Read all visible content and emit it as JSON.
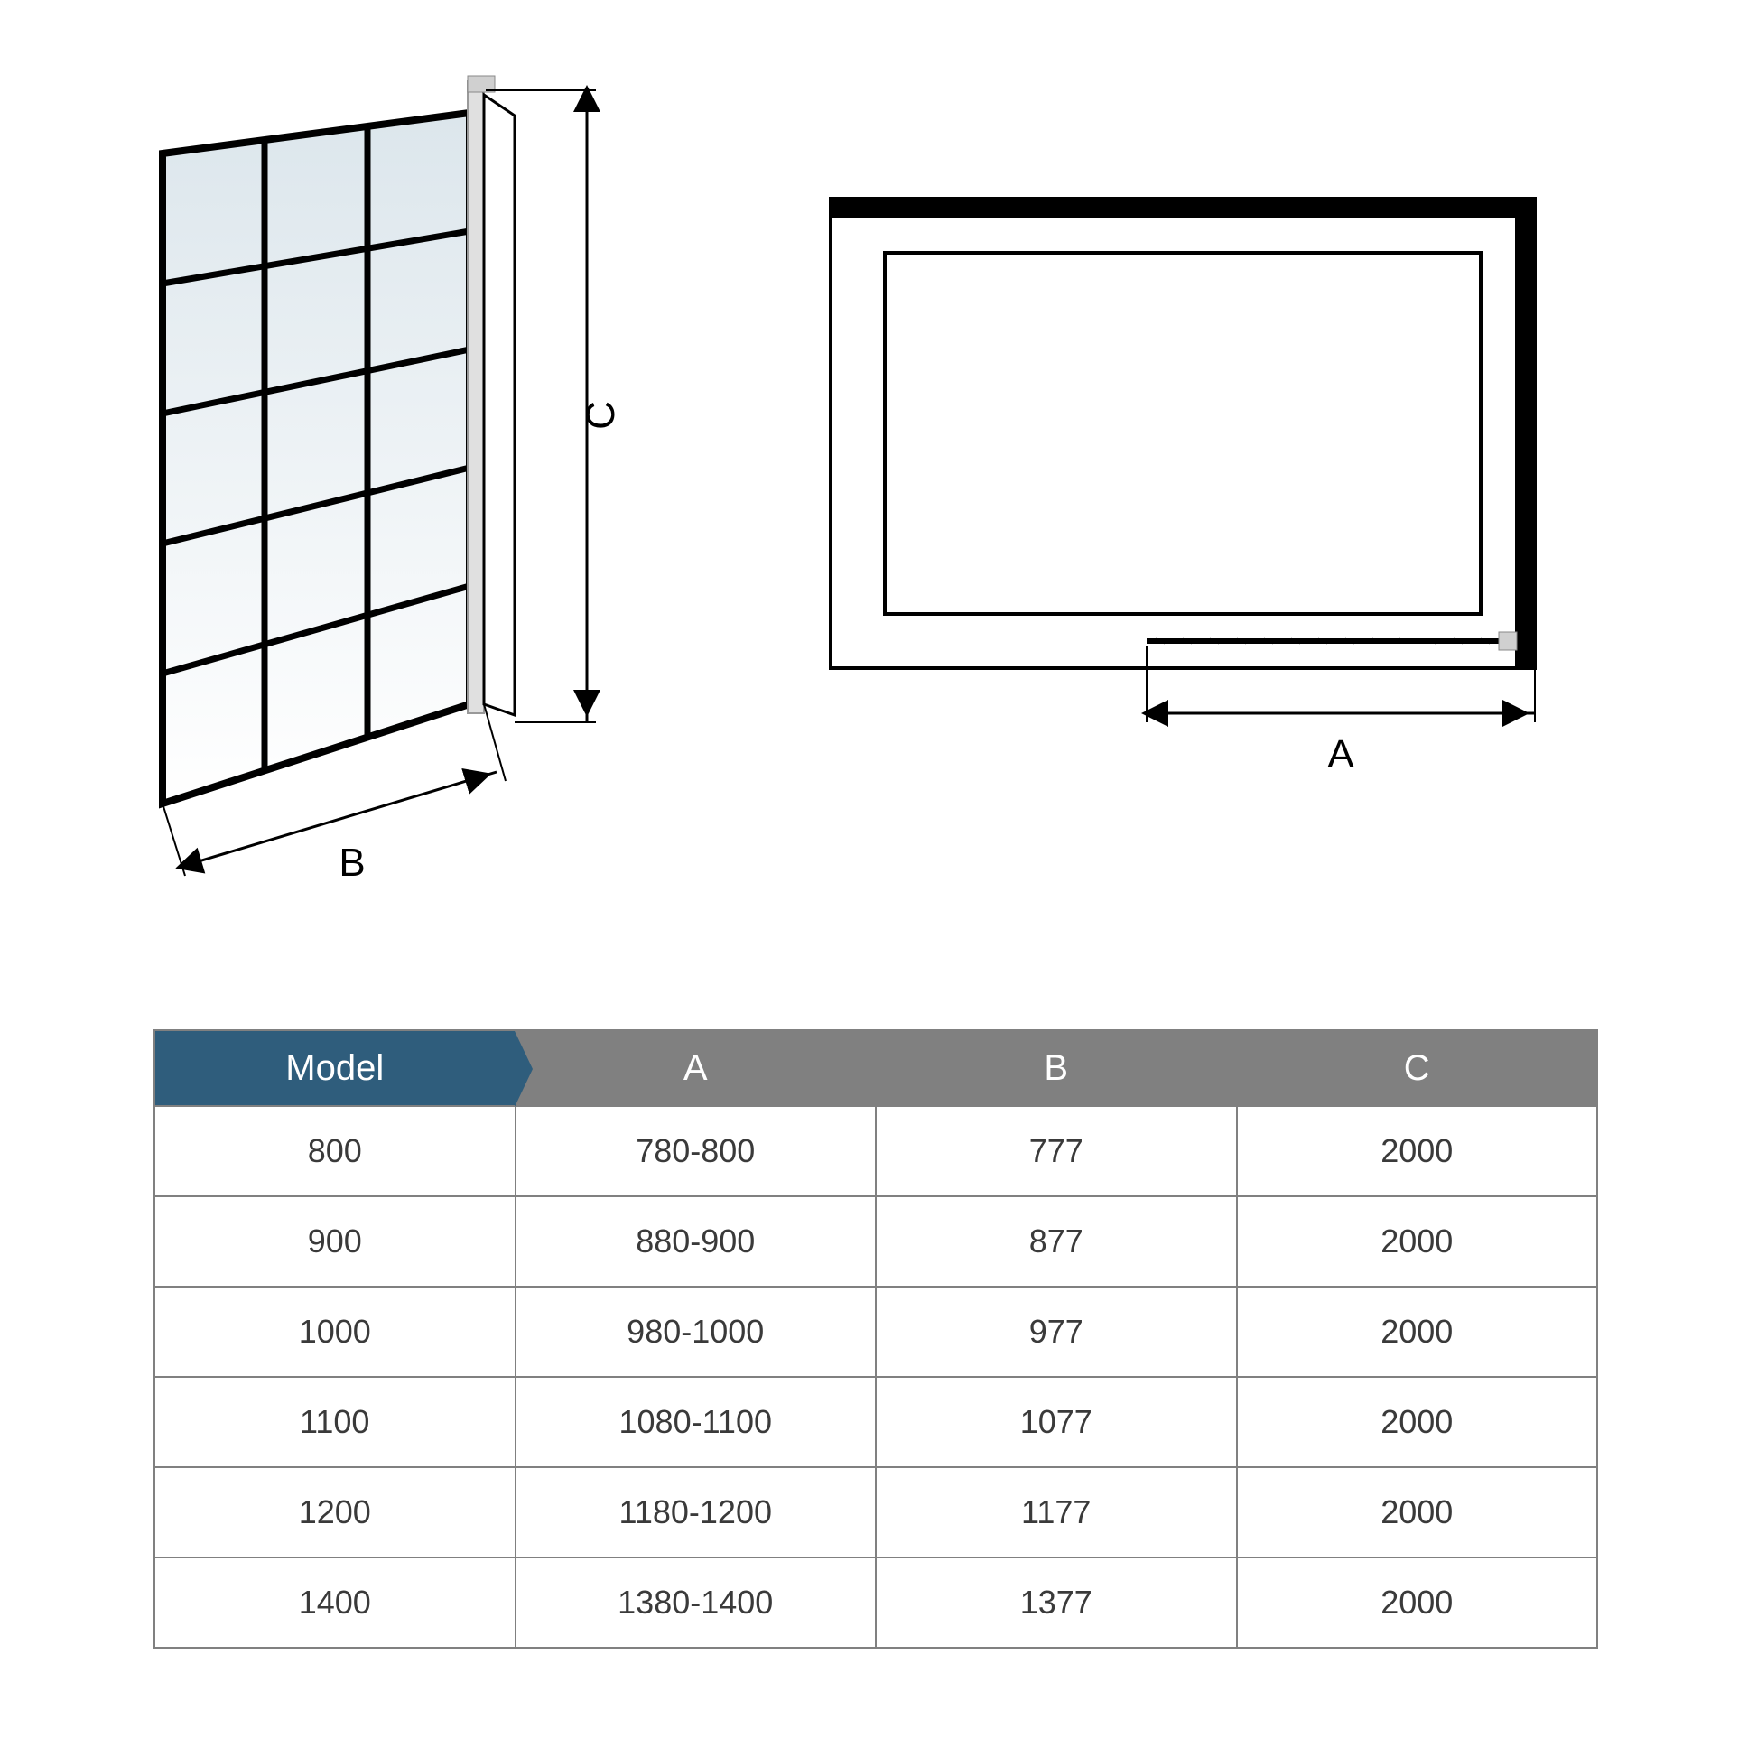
{
  "diagram": {
    "labels": {
      "A": "A",
      "B": "B",
      "C": "C"
    },
    "panel": {
      "grid_rows": 5,
      "grid_cols": 3,
      "frame_color": "#000000",
      "frame_width": 7,
      "glass_top_color": "#e8eef2",
      "glass_bottom_color": "#ffffff",
      "hinge_color": "#d8d8d8"
    },
    "plan": {
      "wall_color": "#000000",
      "wall_width": 18,
      "outline_color": "#000000",
      "outline_width": 4
    },
    "dim_line_color": "#000000",
    "dim_line_width": 3,
    "label_fontsize": 44
  },
  "table": {
    "header_model_bg": "#2f5d7c",
    "header_dim_bg": "#808080",
    "header_text_color": "#ffffff",
    "border_color": "#808080",
    "cell_text_color": "#3a3a3a",
    "cell_fontsize": 36,
    "header_fontsize": 40,
    "columns": [
      "Model",
      "A",
      "B",
      "C"
    ],
    "rows": [
      [
        "800",
        "780-800",
        "777",
        "2000"
      ],
      [
        "900",
        "880-900",
        "877",
        "2000"
      ],
      [
        "1000",
        "980-1000",
        "977",
        "2000"
      ],
      [
        "1100",
        "1080-1100",
        "1077",
        "2000"
      ],
      [
        "1200",
        "1180-1200",
        "1177",
        "2000"
      ],
      [
        "1400",
        "1380-1400",
        "1377",
        "2000"
      ]
    ]
  }
}
